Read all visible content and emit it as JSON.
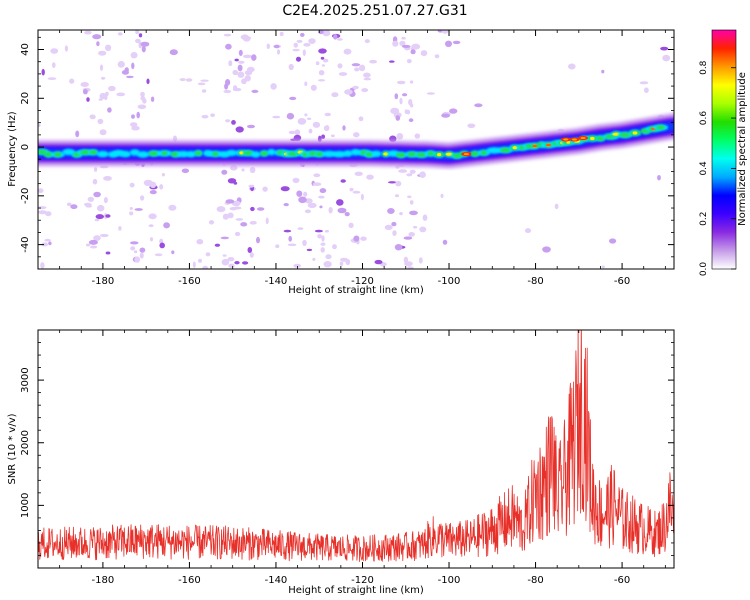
{
  "title": "C2E4.2025.251.07.27.G31",
  "colors": {
    "snr_line": "#e8302a",
    "background": "#ffffff",
    "axis": "#000000"
  },
  "chart_data": [
    {
      "type": "heatmap",
      "title": "C2E4.2025.251.07.27.G31",
      "xlabel": "Height of straight line (km)",
      "ylabel": "Frequency (Hz)",
      "xlim": [
        -195,
        -48
      ],
      "ylim": [
        -50,
        48
      ],
      "xticks": [
        -180,
        -160,
        -140,
        -120,
        -100,
        -80,
        -60
      ],
      "yticks": [
        -40,
        -20,
        0,
        20,
        40
      ],
      "ridge": {
        "description": "dominant frequency ridge (Hz) vs height (km)",
        "x": [
          -195,
          -180,
          -160,
          -140,
          -120,
          -105,
          -100,
          -95,
          -90,
          -85,
          -80,
          -75,
          -70,
          -65,
          -60,
          -55,
          -50,
          -48
        ],
        "y": [
          -2.5,
          -2.5,
          -2.5,
          -2.5,
          -2.5,
          -3,
          -3.5,
          -2.5,
          -1.5,
          -0.5,
          0.5,
          1.5,
          2.5,
          4,
          5,
          6.5,
          8,
          8.5
        ]
      },
      "colorbar": {
        "label": "Normalized spectral amplitude",
        "range": [
          0.0,
          0.95
        ],
        "ticks": [
          0.0,
          0.2,
          0.4,
          0.6,
          0.8
        ],
        "tick_labels": [
          "0.0",
          "0.2",
          "0.4",
          "0.6",
          "0.8"
        ],
        "colormap": [
          "#ffffff",
          "#c59be8",
          "#8a2be2",
          "#3b00ff",
          "#0000ff",
          "#00aaff",
          "#00ffee",
          "#00ff66",
          "#22dd00",
          "#aaff00",
          "#ffff00",
          "#ff9900",
          "#ff2200",
          "#ff00aa"
        ]
      }
    },
    {
      "type": "line",
      "xlabel": "Height of straight line (km)",
      "ylabel": "SNR (10 * v/v)",
      "xlim": [
        -195,
        -48
      ],
      "ylim": [
        0,
        3800
      ],
      "xticks": [
        -180,
        -160,
        -140,
        -120,
        -100,
        -80,
        -60
      ],
      "yticks": [
        1000,
        2000,
        3000
      ],
      "series": [
        {
          "name": "SNR",
          "color": "#e8302a",
          "x": [
            -195,
            -180,
            -170,
            -160,
            -150,
            -140,
            -130,
            -120,
            -110,
            -106,
            -104,
            -100,
            -95,
            -90,
            -88,
            -85,
            -83,
            -80,
            -78,
            -76,
            -75,
            -73,
            -71,
            -70,
            -69,
            -68,
            -67,
            -65,
            -62,
            -60,
            -55,
            -52,
            -50,
            -49,
            -48
          ],
          "values": [
            500,
            520,
            560,
            530,
            520,
            470,
            420,
            400,
            440,
            480,
            650,
            560,
            600,
            780,
            900,
            1050,
            800,
            1550,
            1700,
            2200,
            1400,
            1900,
            2600,
            3200,
            3550,
            2700,
            1500,
            1100,
            1300,
            1000,
            800,
            700,
            900,
            1300,
            1000
          ]
        }
      ]
    }
  ]
}
